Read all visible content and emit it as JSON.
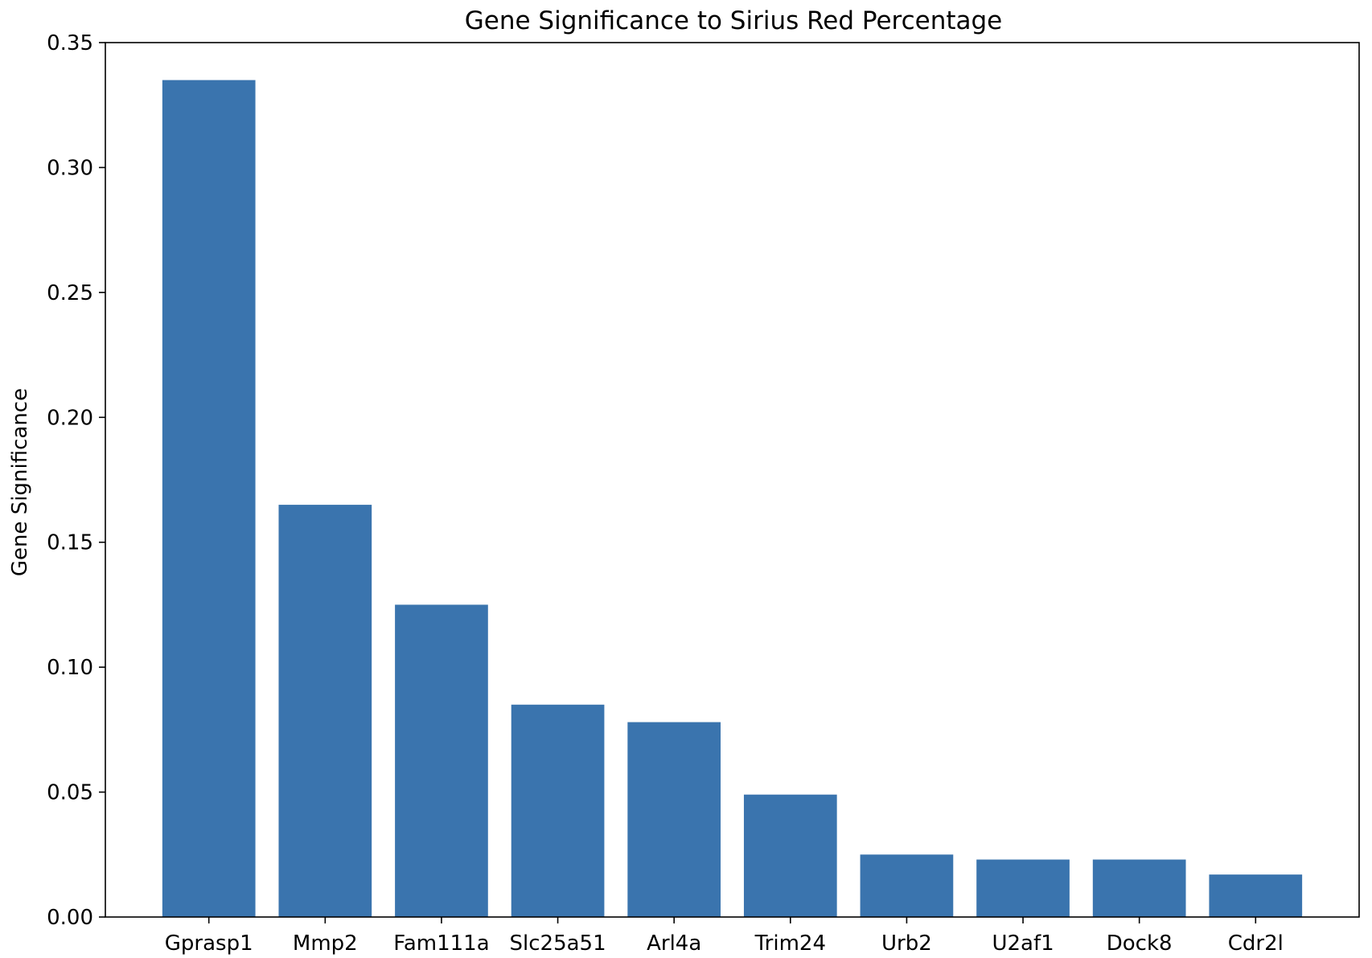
{
  "chart_data": {
    "type": "bar",
    "title": "Gene Significance to Sirius Red Percentage",
    "xlabel": "",
    "ylabel": "Gene Significance",
    "categories": [
      "Gprasp1",
      "Mmp2",
      "Fam111a",
      "Slc25a51",
      "Arl4a",
      "Trim24",
      "Urb2",
      "U2af1",
      "Dock8",
      "Cdr2l"
    ],
    "values": [
      0.335,
      0.165,
      0.125,
      0.085,
      0.078,
      0.049,
      0.025,
      0.023,
      0.023,
      0.017
    ],
    "ylim": [
      0,
      0.35
    ],
    "yticks": [
      "0.00",
      "0.05",
      "0.10",
      "0.15",
      "0.20",
      "0.25",
      "0.30",
      "0.35"
    ],
    "bar_color": "#3a74ae",
    "grid": false,
    "legend": "none"
  }
}
